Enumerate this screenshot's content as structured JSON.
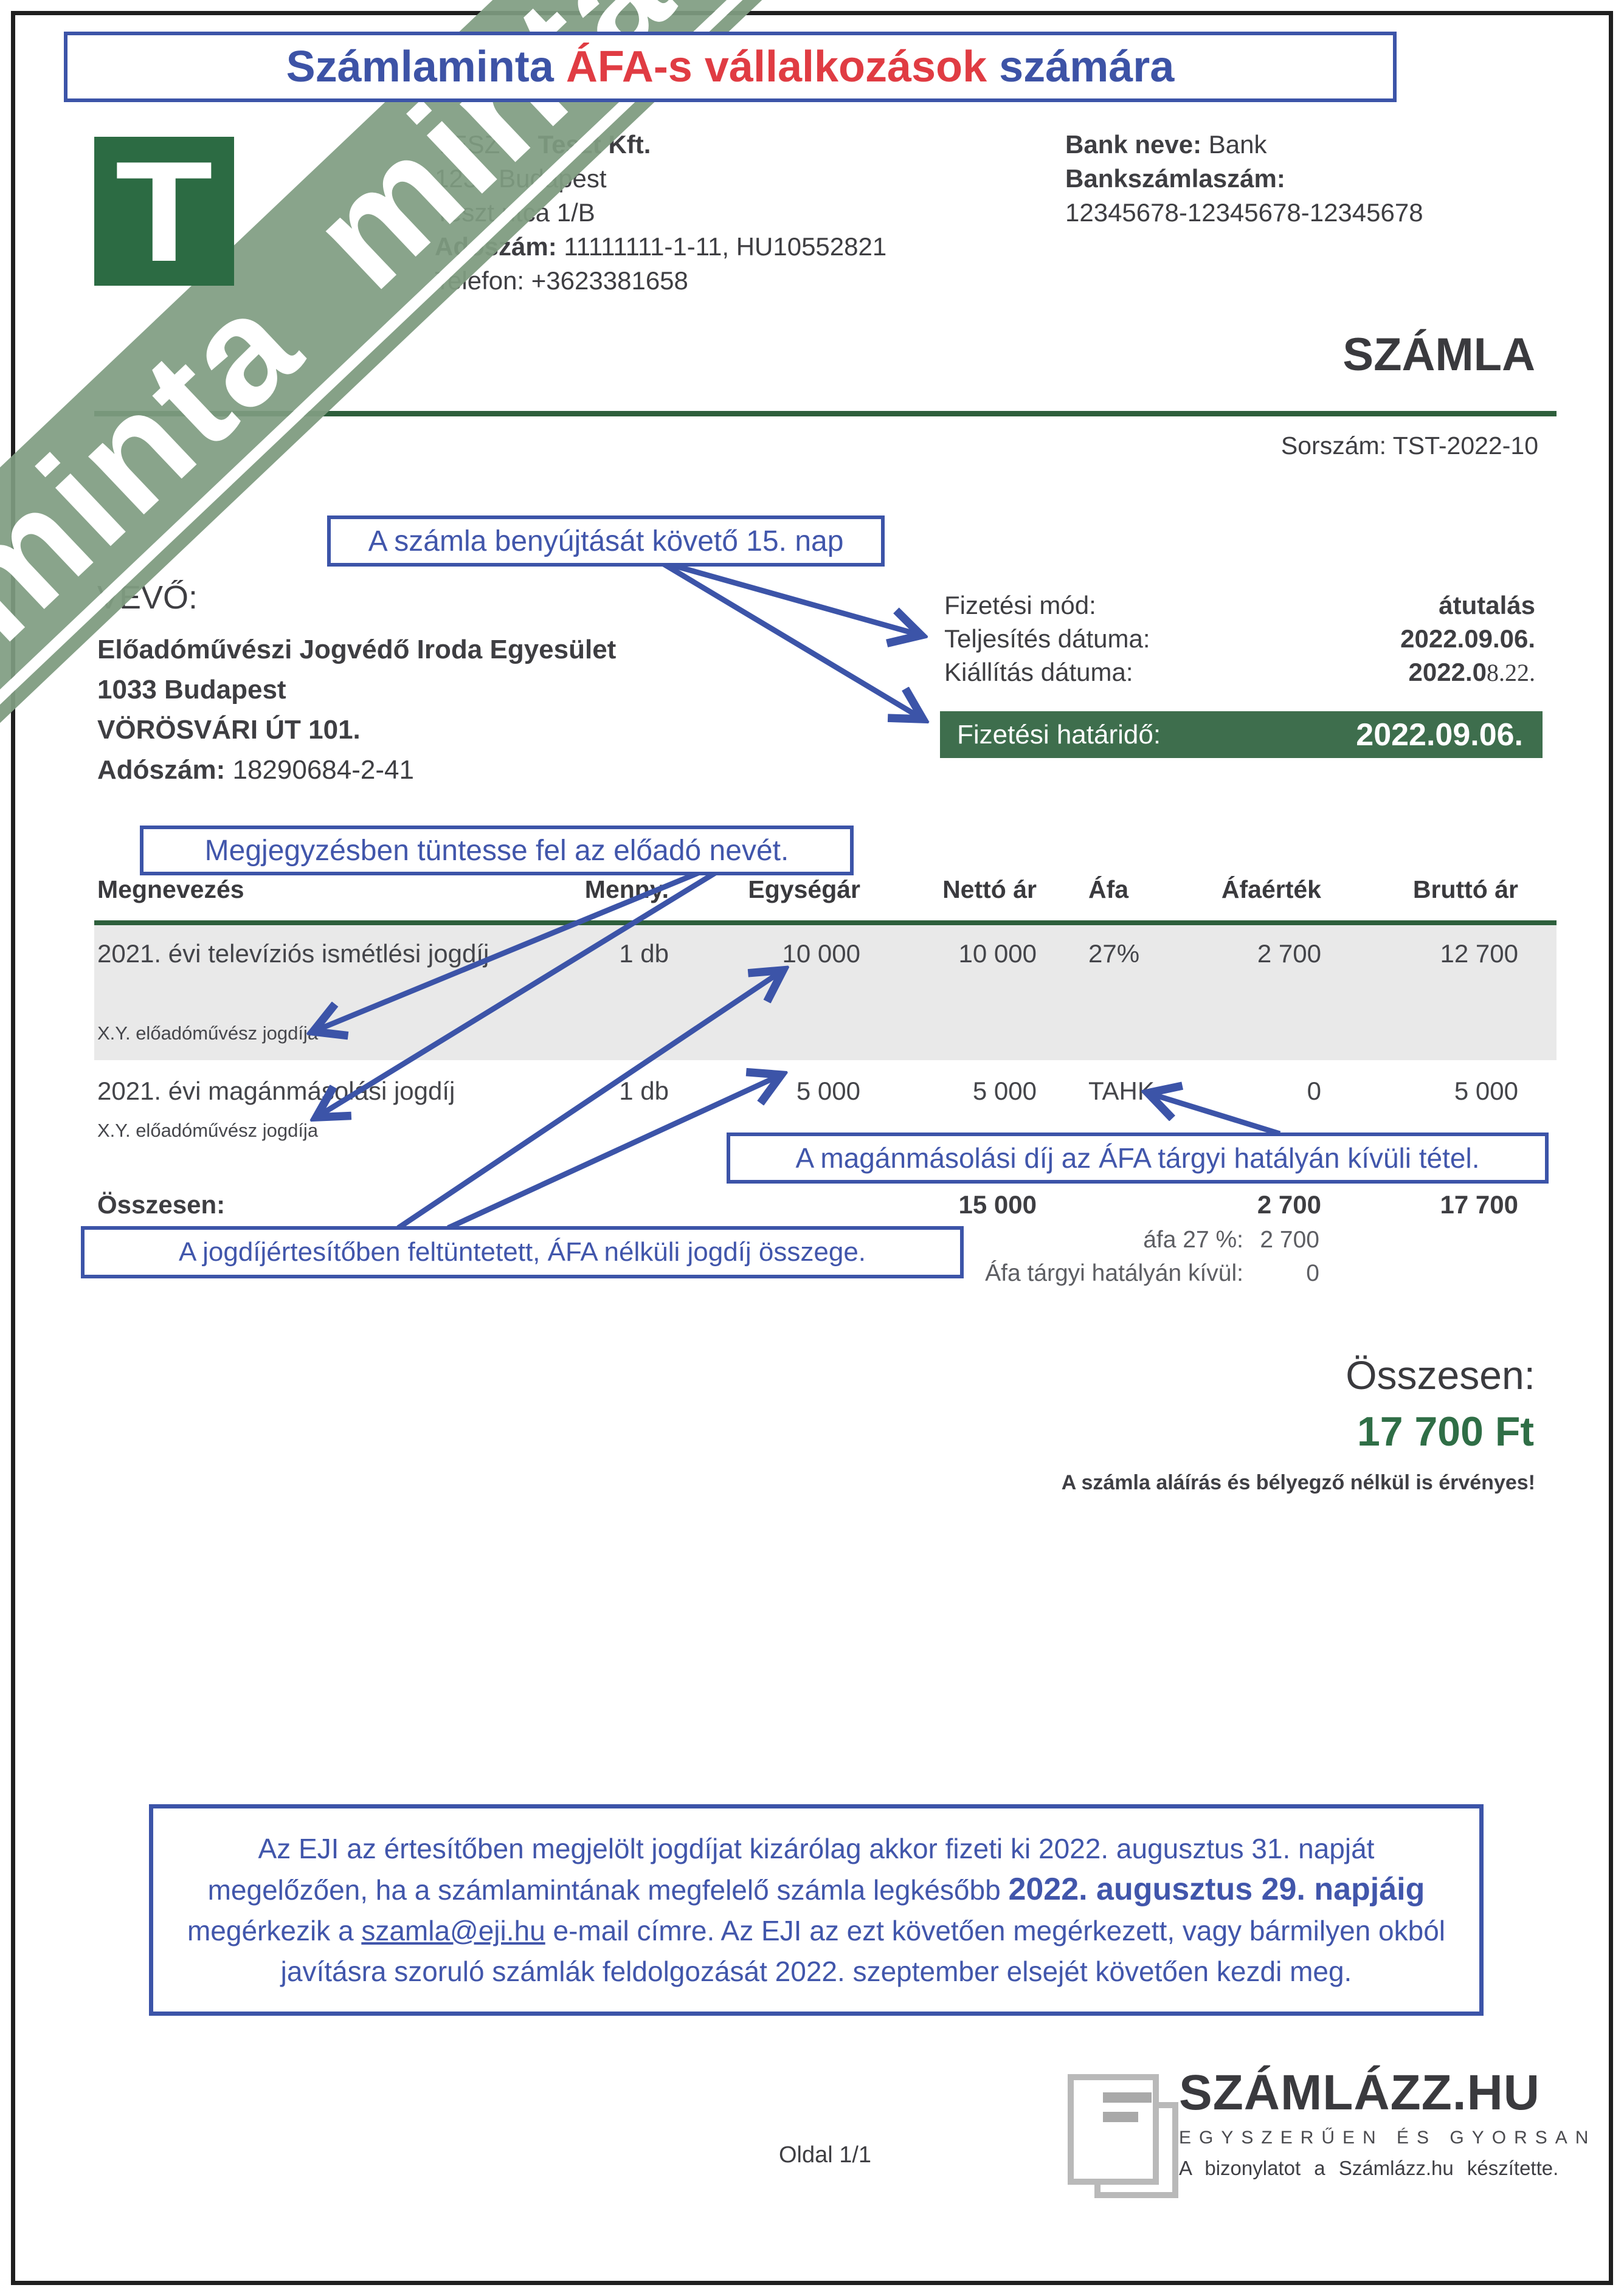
{
  "title": {
    "segments": [
      {
        "text": "Számlaminta ",
        "red": false
      },
      {
        "text": "ÁFA-s vállalkozások",
        "red": true
      },
      {
        "text": " számára",
        "red": false
      }
    ]
  },
  "watermark": {
    "text": "minta minta minta minta minta minta",
    "logo_letter": "T"
  },
  "seller": {
    "name_regular": "TESZT - ",
    "name_bold": "Teszt Kft.",
    "city": "1234 Budapest",
    "street": "Teszt utca 1/B",
    "tax_label": "Adószám:",
    "tax_value": "11111111-1-11, HU10552821",
    "phone_label": "Telefon:",
    "phone_value": "+3623381658"
  },
  "bank": {
    "name_label": "Bank neve:",
    "name_value": "Bank",
    "account_label": "Bankszámlaszám:",
    "account_value": "12345678-12345678-12345678"
  },
  "invoice": {
    "doc_title": "SZÁMLA",
    "serial_label": "Sorszám:",
    "serial_value": "TST-2022-10"
  },
  "buyer": {
    "heading": "VEVŐ:",
    "name": "Előadóművészi Jogvédő Iroda Egyesület",
    "city": "1033 Budapest",
    "street": "VÖRÖSVÁRI ÚT 101.",
    "tax_label": "Adószám:",
    "tax_value": "18290684-2-41"
  },
  "payment": {
    "method_label": "Fizetési mód:",
    "method_value": "átutalás",
    "fulfillment_label": "Teljesítés dátuma:",
    "fulfillment_value": "2022.09.06.",
    "issue_label": "Kiállítás dátuma:",
    "issue_value_main": "2022.0",
    "issue_value_tail": "8.22.",
    "due_label": "Fizetési határidő:",
    "due_value": "2022.09.06."
  },
  "callouts": {
    "c1": "A számla benyújtását követő 15. nap",
    "c2": "Megjegyzésben tüntesse fel az előadó nevét.",
    "c3": "A magánmásolási díj az ÁFA tárgyi hatályán kívüli tétel.",
    "c4": "A jogdíjértesítőben feltüntetett, ÁFA nélküli jogdíj összege."
  },
  "table": {
    "headers": [
      "Megnevezés",
      "Menny.",
      "Egységár",
      "Nettó ár",
      "Áfa",
      "Áfaérték",
      "Bruttó ár"
    ],
    "rows": [
      {
        "name": "2021. évi televíziós ismétlési jogdíj",
        "note": "X.Y. előadóművész jogdíja",
        "qty": "1 db",
        "unit_price": "10 000",
        "net": "10 000",
        "vat": "27%",
        "vat_amount": "2 700",
        "gross": "12 700"
      },
      {
        "name": "2021. évi magánmásolási jogdíj",
        "note": "X.Y. előadóművész jogdíja",
        "qty": "1 db",
        "unit_price": "5 000",
        "net": "5 000",
        "vat": "TAHK",
        "vat_amount": "0",
        "gross": "5 000"
      }
    ],
    "total_label": "Összesen:",
    "total_net": "15 000",
    "total_vat": "2 700",
    "total_gross": "17 700",
    "vat_breakdown": [
      {
        "label": "áfa 27 %:",
        "value": "2 700"
      },
      {
        "label": "Áfa tárgyi hatályán kívül:",
        "value": "0"
      }
    ]
  },
  "summary": {
    "total_label": "Összesen:",
    "total_value": "17 700 Ft",
    "validity_note": "A számla aláírás és bélyegző nélkül is érvényes!"
  },
  "notice": {
    "segments": [
      {
        "text": "Az EJI az értesítőben megjelölt jogdíjat kizárólag akkor fizeti ki 2022. augusztus 31. napját megelőzően, ha a számlamintának megfelelő számla legkésőbb "
      },
      {
        "text": "2022. augusztus 29. napjáig",
        "big": true
      },
      {
        "text": " megérkezik a "
      },
      {
        "text": "szamla@eji.hu",
        "underline": true
      },
      {
        "text": " e-mail címre. Az EJI az ezt követően megérkezett, vagy bármilyen okból javításra szoruló számlák feldolgozását 2022. szeptember elsejét követően kezdi meg."
      }
    ]
  },
  "footer": {
    "page": "Oldal 1/1",
    "brand": "SZÁMLÁZZ.HU",
    "tagline": "EGYSZERŰEN ÉS GYORSAN",
    "credit": "A bizonylatot a Számlázz.hu készítette."
  }
}
